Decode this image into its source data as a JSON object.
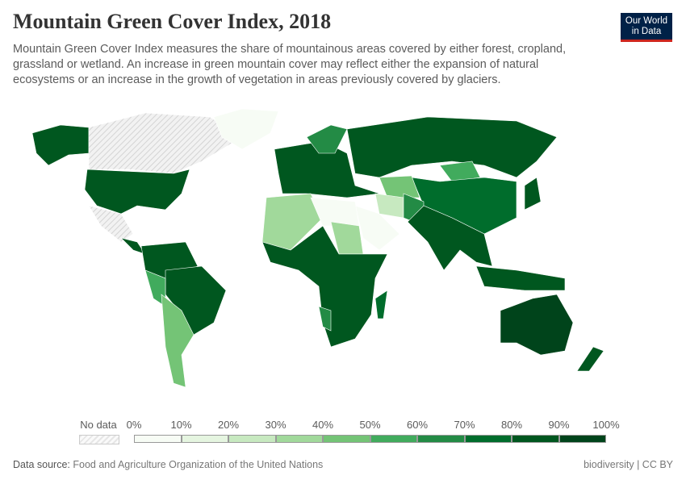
{
  "header": {
    "title": "Mountain Green Cover Index, 2018",
    "subtitle": "Mountain Green Cover Index measures the share of mountainous areas covered by either forest, cropland, grassland or wetland. An increase in green mountain cover may reflect either the expansion of natural ecosystems or an increase in the growth of vegetation in areas previously covered by glaciers.",
    "logo": "Our World in Data"
  },
  "legend": {
    "no_data_label": "No data",
    "ticks": [
      "0%",
      "10%",
      "20%",
      "30%",
      "40%",
      "50%",
      "60%",
      "70%",
      "80%",
      "90%",
      "100%"
    ],
    "colors": [
      "#f7fcf5",
      "#e5f5e0",
      "#c7e9c0",
      "#a1d99b",
      "#74c476",
      "#41ab5d",
      "#238b45",
      "#006d2c",
      "#00571f",
      "#00441b"
    ],
    "no_data_color": "#e6e6e6"
  },
  "footer": {
    "source_label": "Data source:",
    "source": "Food and Agriculture Organization of the United Nations",
    "license": "biodiversity | CC BY"
  },
  "map_regions": [
    {
      "name": "alaska",
      "bin": 8
    },
    {
      "name": "canada",
      "bin": -1
    },
    {
      "name": "usa",
      "bin": 8
    },
    {
      "name": "mexico",
      "bin": -1
    },
    {
      "name": "greenland",
      "bin": 0
    },
    {
      "name": "central-america",
      "bin": 8
    },
    {
      "name": "south-america-north",
      "bin": 8
    },
    {
      "name": "brazil",
      "bin": 8
    },
    {
      "name": "peru-andes",
      "bin": 5
    },
    {
      "name": "argentina-chile",
      "bin": 4
    },
    {
      "name": "europe",
      "bin": 8
    },
    {
      "name": "scandinavia",
      "bin": 6
    },
    {
      "name": "russia",
      "bin": 8
    },
    {
      "name": "mongolia",
      "bin": 5
    },
    {
      "name": "china",
      "bin": 7
    },
    {
      "name": "central-asia",
      "bin": 4
    },
    {
      "name": "iran",
      "bin": 2
    },
    {
      "name": "pakistan",
      "bin": 6
    },
    {
      "name": "india-se-asia",
      "bin": 8
    },
    {
      "name": "arabia",
      "bin": 0
    },
    {
      "name": "sahara-west",
      "bin": 3
    },
    {
      "name": "sahara-east",
      "bin": 0
    },
    {
      "name": "sudan",
      "bin": 3
    },
    {
      "name": "sub-saharan-africa",
      "bin": 8
    },
    {
      "name": "angola",
      "bin": 6
    },
    {
      "name": "madagascar",
      "bin": 7
    },
    {
      "name": "indonesia",
      "bin": 8
    },
    {
      "name": "australia",
      "bin": 9
    },
    {
      "name": "new-zealand",
      "bin": 8
    },
    {
      "name": "japan",
      "bin": 8
    }
  ]
}
